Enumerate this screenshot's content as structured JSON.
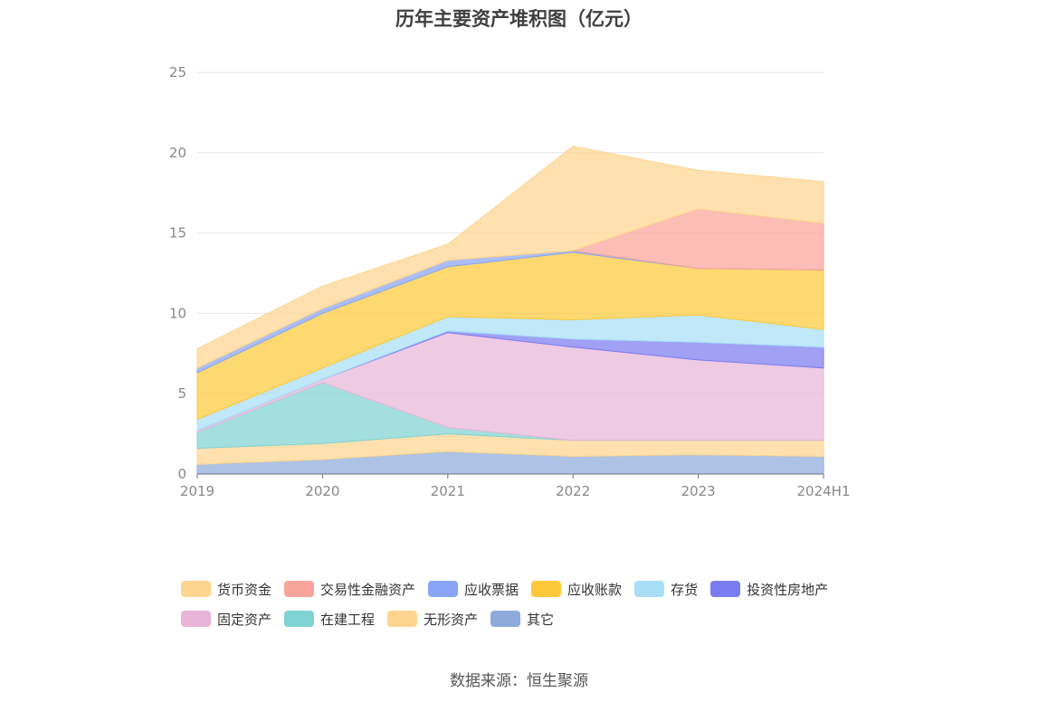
{
  "chart_data": {
    "type": "area",
    "title": "历年主要资产堆积图（亿元）",
    "categories": [
      "2019",
      "2020",
      "2021",
      "2022",
      "2023",
      "2024H1"
    ],
    "ylim": [
      0,
      25
    ],
    "yticks": [
      "0",
      "5",
      "10",
      "15",
      "20",
      "25"
    ],
    "grid": true,
    "stacked": true,
    "legend_position": "bottom",
    "series": [
      {
        "name": "其它",
        "color": "#8eaadb",
        "values": [
          0.6,
          0.9,
          1.4,
          1.1,
          1.2,
          1.1
        ]
      },
      {
        "name": "无形资产",
        "color": "#fdd58f",
        "values": [
          1.0,
          1.0,
          1.1,
          1.0,
          0.9,
          1.0
        ]
      },
      {
        "name": "在建工程",
        "color": "#7fd3d3",
        "values": [
          1.0,
          3.8,
          0.4,
          0.0,
          0.0,
          0.0
        ]
      },
      {
        "name": "固定资产",
        "color": "#e8b5d8",
        "values": [
          0.1,
          0.2,
          5.9,
          5.8,
          5.0,
          4.5
        ]
      },
      {
        "name": "投资性房地产",
        "color": "#7b7cf0",
        "values": [
          0.0,
          0.0,
          0.1,
          0.5,
          1.1,
          1.3
        ]
      },
      {
        "name": "存货",
        "color": "#a8dff7",
        "values": [
          0.7,
          0.7,
          0.9,
          1.2,
          1.7,
          1.1
        ]
      },
      {
        "name": "应收账款",
        "color": "#fdc93a",
        "values": [
          2.9,
          3.4,
          3.1,
          4.2,
          2.9,
          3.7
        ]
      },
      {
        "name": "应收票据",
        "color": "#88a5f5",
        "values": [
          0.3,
          0.3,
          0.4,
          0.1,
          0.0,
          0.0
        ]
      },
      {
        "name": "交易性金融资产",
        "color": "#f9a49a",
        "values": [
          0.0,
          0.0,
          0.0,
          0.0,
          3.7,
          2.9
        ]
      },
      {
        "name": "货币资金",
        "color": "#fdd58f",
        "values": [
          1.2,
          1.4,
          1.0,
          6.5,
          2.4,
          2.6
        ]
      }
    ]
  },
  "legend": {
    "row1": [
      {
        "label": "货币资金",
        "color": "#fdd58f"
      },
      {
        "label": "交易性金融资产",
        "color": "#f9a49a"
      },
      {
        "label": "应收票据",
        "color": "#88a5f5"
      },
      {
        "label": "应收账款",
        "color": "#fdc93a"
      },
      {
        "label": "存货",
        "color": "#a8dff7"
      },
      {
        "label": "投资性房地产",
        "color": "#7b7cf0"
      }
    ],
    "row2": [
      {
        "label": "固定资产",
        "color": "#e8b5d8"
      },
      {
        "label": "在建工程",
        "color": "#7fd3d3"
      },
      {
        "label": "无形资产",
        "color": "#fdd58f"
      },
      {
        "label": "其它",
        "color": "#8eaadb"
      }
    ]
  },
  "source_note": "数据来源：恒生聚源"
}
